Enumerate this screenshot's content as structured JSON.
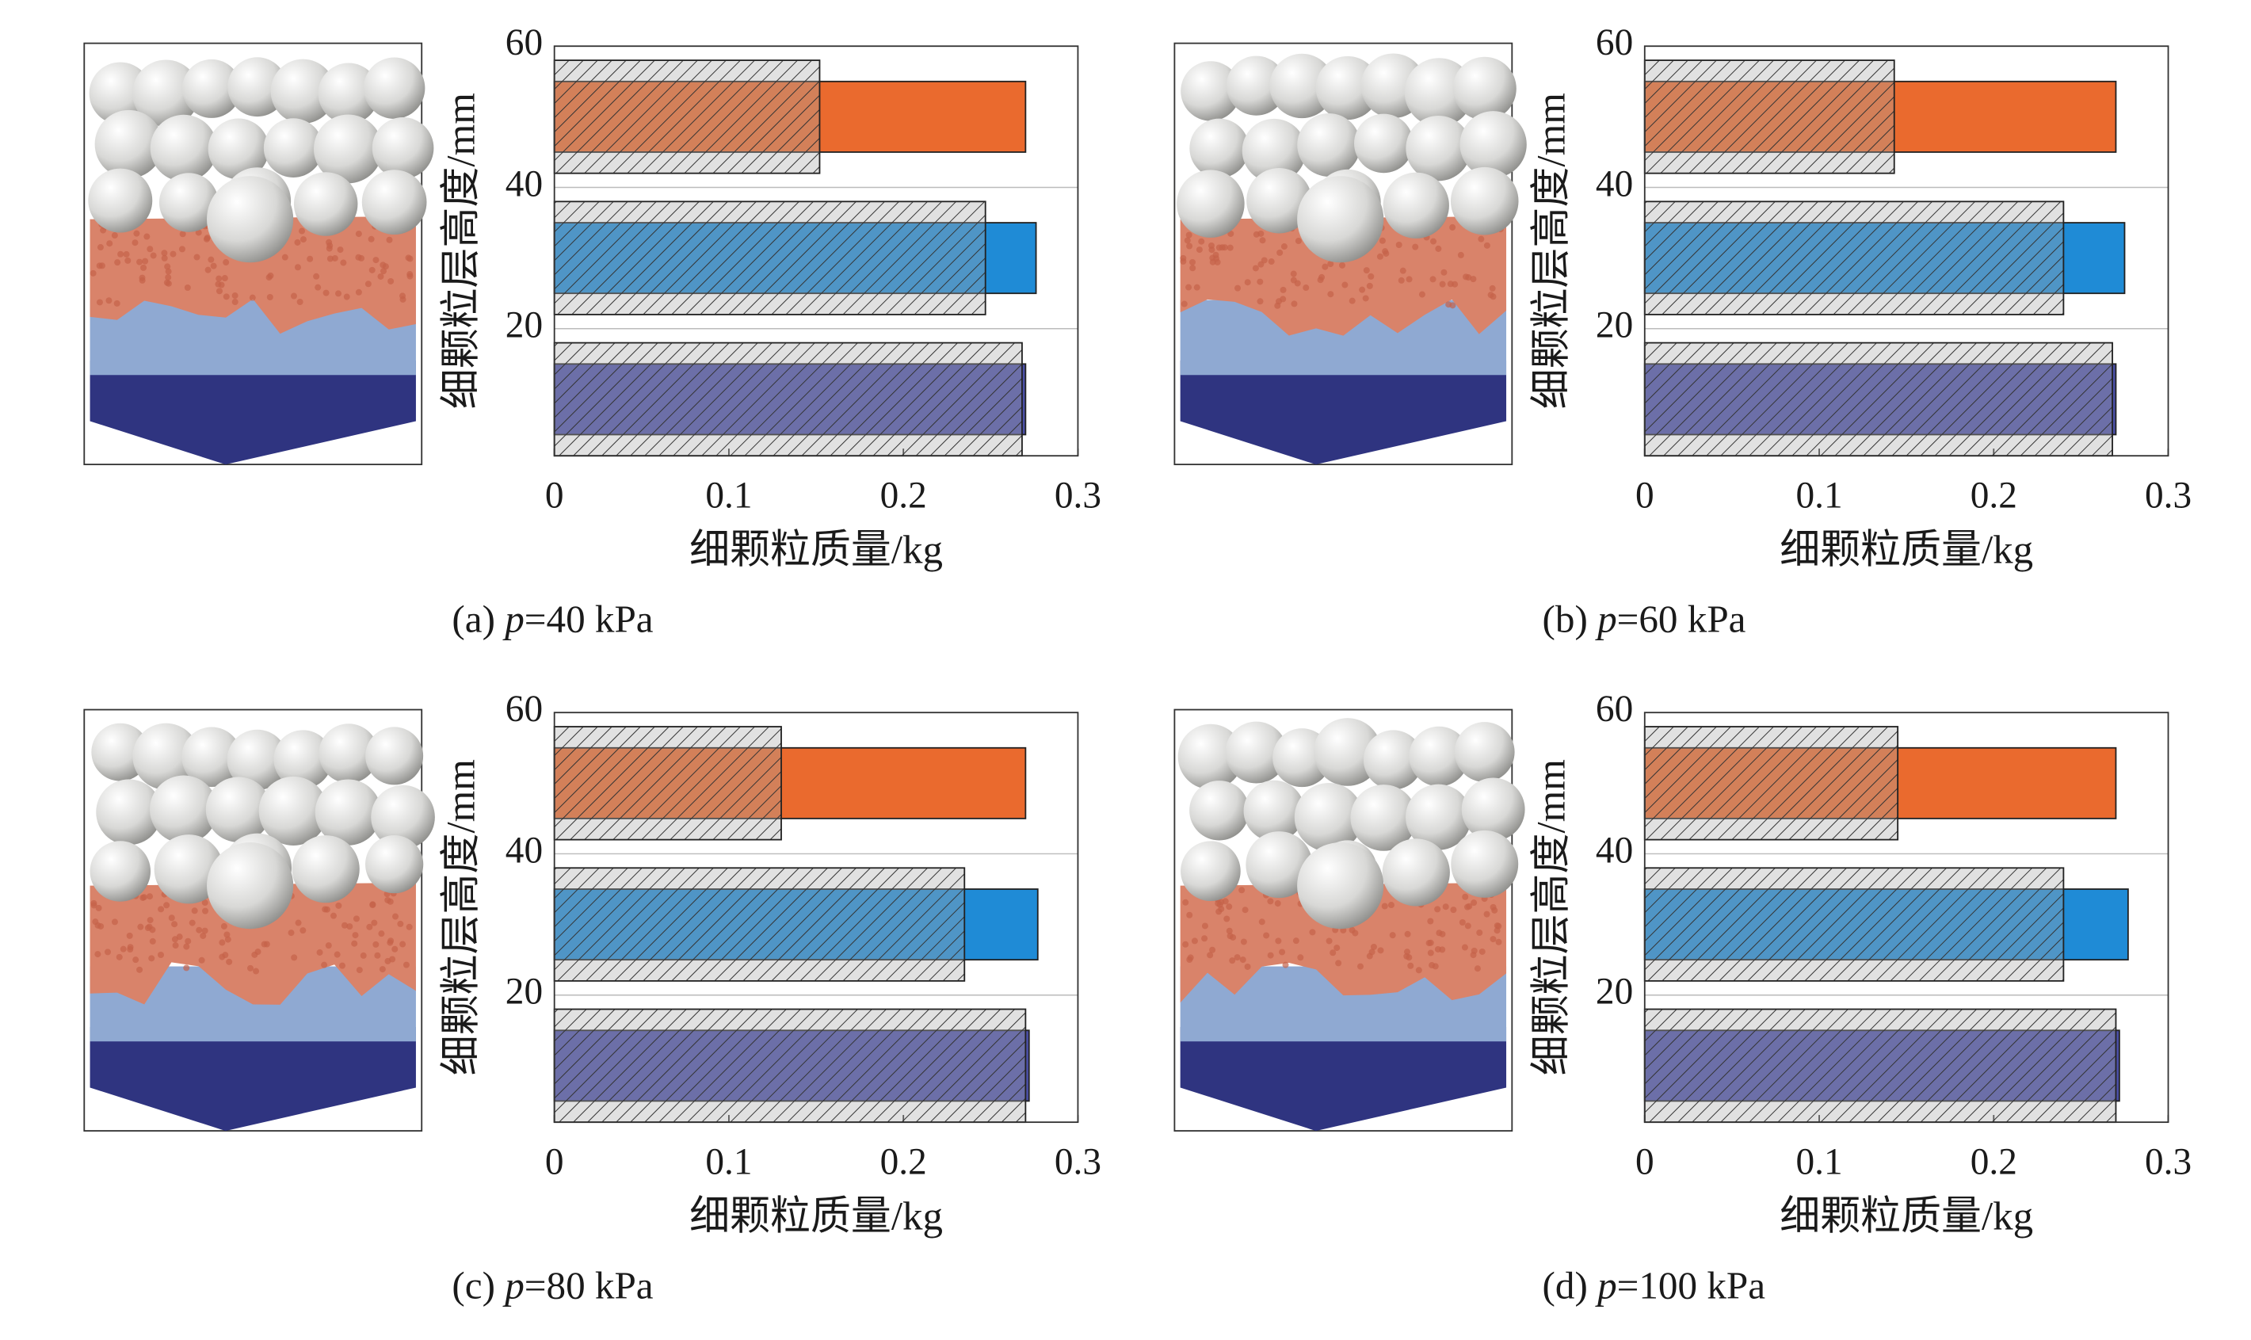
{
  "chart_data": [
    {
      "type": "bar",
      "orientation": "horizontal",
      "caption_prefix": "(a) ",
      "caption_var": "p",
      "caption_rest": "=40 kPa",
      "xlabel": "细颗粒质量/kg",
      "ylabel": "细颗粒层高度/mm",
      "positions": [
        10,
        30,
        50
      ],
      "series": [
        {
          "colors": [
            "#4b50a8",
            "#1f8bd6",
            "#ea6a2e"
          ],
          "values": [
            0.27,
            0.276,
            0.27
          ]
        },
        {
          "color": "#d4d4d4",
          "hatch": true,
          "values": [
            0.268,
            0.247,
            0.152
          ]
        }
      ],
      "xlim": [
        0,
        0.3
      ],
      "xticks": [
        0,
        0.1,
        0.2,
        0.3
      ],
      "ylim": [
        2,
        60
      ],
      "yticks": [
        20,
        40,
        60
      ],
      "grid": true
    },
    {
      "type": "bar",
      "orientation": "horizontal",
      "caption_prefix": "(b) ",
      "caption_var": "p",
      "caption_rest": "=60 kPa",
      "xlabel": "细颗粒质量/kg",
      "ylabel": "细颗粒层高度/mm",
      "positions": [
        10,
        30,
        50
      ],
      "series": [
        {
          "colors": [
            "#4b50a8",
            "#1f8bd6",
            "#ea6a2e"
          ],
          "values": [
            0.27,
            0.275,
            0.27
          ]
        },
        {
          "color": "#d4d4d4",
          "hatch": true,
          "values": [
            0.268,
            0.24,
            0.143
          ]
        }
      ],
      "xlim": [
        0,
        0.3
      ],
      "xticks": [
        0,
        0.1,
        0.2,
        0.3
      ],
      "ylim": [
        2,
        60
      ],
      "yticks": [
        20,
        40,
        60
      ],
      "grid": true
    },
    {
      "type": "bar",
      "orientation": "horizontal",
      "caption_prefix": "(c) ",
      "caption_var": "p",
      "caption_rest": "=80 kPa",
      "xlabel": "细颗粒质量/kg",
      "ylabel": "细颗粒层高度/mm",
      "positions": [
        10,
        30,
        50
      ],
      "series": [
        {
          "colors": [
            "#4b50a8",
            "#1f8bd6",
            "#ea6a2e"
          ],
          "values": [
            0.272,
            0.277,
            0.27
          ]
        },
        {
          "color": "#d4d4d4",
          "hatch": true,
          "values": [
            0.27,
            0.235,
            0.13
          ]
        }
      ],
      "xlim": [
        0,
        0.3
      ],
      "xticks": [
        0,
        0.1,
        0.2,
        0.3
      ],
      "ylim": [
        2,
        60
      ],
      "yticks": [
        20,
        40,
        60
      ],
      "grid": true
    },
    {
      "type": "bar",
      "orientation": "horizontal",
      "caption_prefix": "(d) ",
      "caption_var": "p",
      "caption_rest": "=100 kPa",
      "xlabel": "细颗粒质量/kg",
      "ylabel": "细颗粒层高度/mm",
      "positions": [
        10,
        30,
        50
      ],
      "series": [
        {
          "colors": [
            "#4b50a8",
            "#1f8bd6",
            "#ea6a2e"
          ],
          "values": [
            0.272,
            0.277,
            0.27
          ]
        },
        {
          "color": "#d4d4d4",
          "hatch": true,
          "values": [
            0.27,
            0.24,
            0.145
          ]
        }
      ],
      "xlim": [
        0,
        0.3
      ],
      "xticks": [
        0,
        0.1,
        0.2,
        0.3
      ],
      "ylim": [
        2,
        60
      ],
      "yticks": [
        20,
        40,
        60
      ],
      "grid": true
    }
  ]
}
